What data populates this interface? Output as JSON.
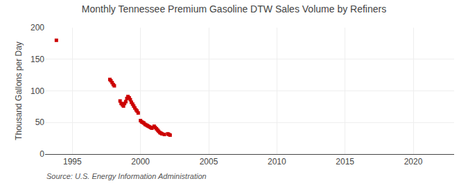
{
  "chart_data": {
    "type": "scatter",
    "title": "Monthly Tennessee Premium Gasoline DTW Sales Volume by Refiners",
    "ylabel": "Thousand Gallons per Day",
    "annotations": [
      "Source: U.S. Energy Information Administration"
    ],
    "color": "#cc0000",
    "marker": "square",
    "grid": true,
    "xlim": [
      1993.0,
      2023.0
    ],
    "ylim": [
      0,
      200
    ],
    "xticks": [
      1995,
      2000,
      2005,
      2010,
      2015,
      2020
    ],
    "yticks": [
      0,
      50,
      100,
      150,
      200
    ],
    "x": [
      1993.83,
      1997.75,
      1997.83,
      1997.92,
      1998.0,
      1998.08,
      1998.5,
      1998.58,
      1998.67,
      1998.75,
      1998.83,
      1998.92,
      1999.0,
      1999.08,
      1999.17,
      1999.25,
      1999.33,
      1999.42,
      1999.5,
      1999.58,
      1999.67,
      1999.75,
      1999.83,
      2000.0,
      2000.08,
      2000.17,
      2000.25,
      2000.33,
      2000.42,
      2000.5,
      2000.58,
      2000.67,
      2000.75,
      2000.83,
      2001.0,
      2001.08,
      2001.17,
      2001.25,
      2001.33,
      2001.42,
      2001.5,
      2001.58,
      2001.75,
      2002.0,
      2002.08,
      2002.17
    ],
    "values": [
      180,
      118,
      116,
      113,
      110,
      108,
      84,
      80,
      78,
      76,
      80,
      83,
      88,
      91,
      89,
      86,
      82,
      79,
      76,
      73,
      70,
      68,
      65,
      53,
      51,
      50,
      49,
      47,
      46,
      45,
      44,
      43,
      42,
      41,
      44,
      42,
      40,
      38,
      36,
      34,
      33,
      32,
      31,
      32,
      31,
      30
    ]
  }
}
